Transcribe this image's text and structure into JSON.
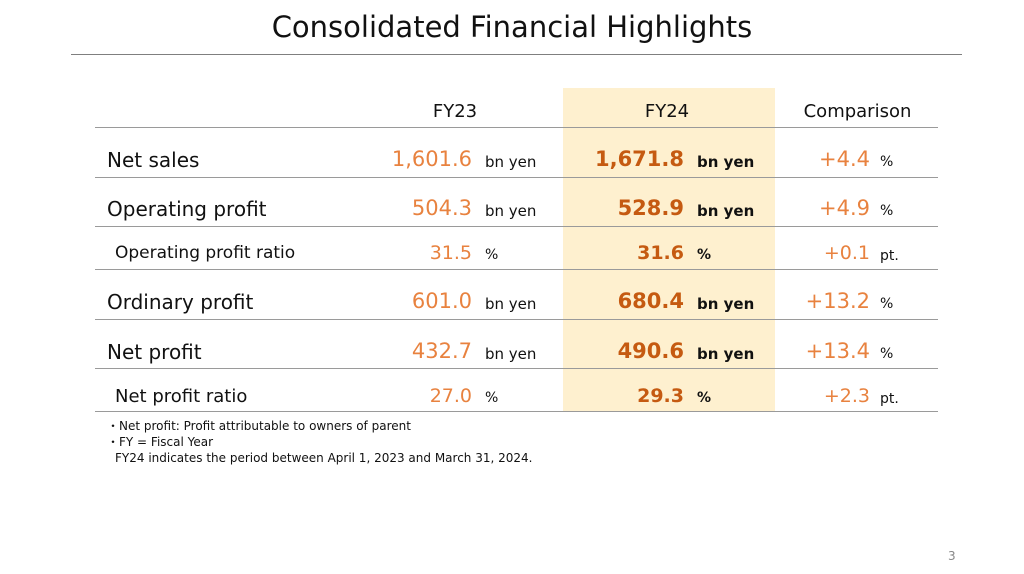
{
  "title": "Consolidated Financial Highlights",
  "columns": {
    "fy23": "FY23",
    "fy24": "FY24",
    "comparison": "Comparison"
  },
  "rows": [
    {
      "label": "Net sales",
      "fy23_value": "1,601.6",
      "fy23_unit": "bn yen",
      "fy24_value": "1,671.8",
      "fy24_unit": "bn yen",
      "cmp_value": "+4.4",
      "cmp_unit": "%"
    },
    {
      "label": "Operating profit",
      "fy23_value": "504.3",
      "fy23_unit": "bn yen",
      "fy24_value": "528.9",
      "fy24_unit": "bn yen",
      "cmp_value": "+4.9",
      "cmp_unit": "%"
    },
    {
      "label": "Operating profit ratio",
      "fy23_value": "31.5",
      "fy23_unit": "%",
      "fy24_value": "31.6",
      "fy24_unit": "%",
      "cmp_value": "+0.1",
      "cmp_unit": "pt."
    },
    {
      "label": "Ordinary profit",
      "fy23_value": "601.0",
      "fy23_unit": "bn yen",
      "fy24_value": "680.4",
      "fy24_unit": "bn yen",
      "cmp_value": "+13.2",
      "cmp_unit": "%"
    },
    {
      "label": "Net profit",
      "fy23_value": "432.7",
      "fy23_unit": "bn yen",
      "fy24_value": "490.6",
      "fy24_unit": "bn yen",
      "cmp_value": "+13.4",
      "cmp_unit": "%"
    },
    {
      "label": "Net profit ratio",
      "fy23_value": "27.0",
      "fy23_unit": "%",
      "fy24_value": "29.3",
      "fy24_unit": "%",
      "cmp_value": "+2.3",
      "cmp_unit": "pt."
    }
  ],
  "notes": [
    "・Net profit: Profit attributable to owners of parent",
    "・FY = Fiscal Year",
    "FY24 indicates the period between April 1, 2023 and March 31, 2024."
  ],
  "page_number": "3",
  "colors": {
    "highlight_band": "#fef0cf",
    "fy23_value": "#e8823f",
    "fy24_value": "#c55a11",
    "comparison_value": "#e8823f"
  }
}
